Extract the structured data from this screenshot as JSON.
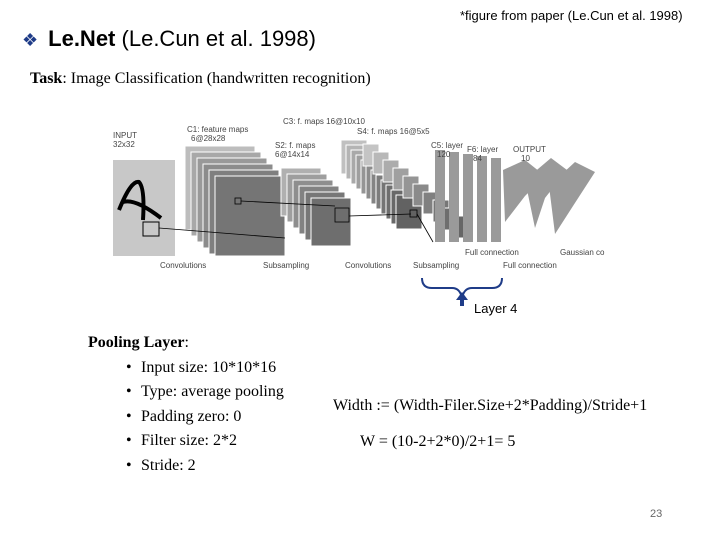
{
  "header": {
    "bullet_icon": "diamond-bullet-icon",
    "title_bold": "Le.Net",
    "title_rest": "(Le.Cun et al. 1998)",
    "citation": "*figure from paper (Le.Cun et al. 1998)"
  },
  "task": {
    "label": "Task",
    "text": ": Image Classification (handwritten recognition)"
  },
  "figure": {
    "input_label": "INPUT",
    "input_size": "32x32",
    "c1_label": "C1: feature maps",
    "c1_size": "6@28x28",
    "c3_label": "C3: f. maps 16@10x10",
    "s2_label": "S2: f. maps",
    "s2_size": "6@14x14",
    "s4_label": "S4: f. maps 16@5x5",
    "c5_label": "C5: layer",
    "c5_size": "120",
    "f6_label": "F6: layer",
    "f6_size": "84",
    "output_label": "OUTPUT",
    "output_size": "10",
    "op1": "Convolutions",
    "op2": "Subsampling",
    "op3": "Convolutions",
    "op4": "Subsampling",
    "op5": "Full connection",
    "op6": "Full connection",
    "op7": "Gaussian connections"
  },
  "annotation": {
    "brace_icon": "curly-brace-arrow-icon",
    "label": "Layer 4"
  },
  "pooling": {
    "heading": "Pooling Layer",
    "colon": ":",
    "items": [
      "Input size: 10*10*16",
      "Type: average pooling",
      "Padding zero: 0",
      "Filter size: 2*2",
      "Stride: 2"
    ]
  },
  "formula": {
    "general": "Width := (Width-Filer.Size+2*Padding)/Stride+1",
    "applied": "W = (10-2+2*0)/2+1= 5"
  },
  "page_number": "23",
  "colors": {
    "bullet": "#1f3c88",
    "brace": "#1f3c88"
  }
}
